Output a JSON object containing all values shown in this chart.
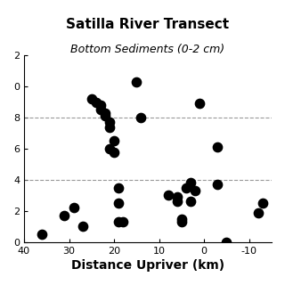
{
  "title": "Satilla River Transect",
  "subtitle": "Bottom Sediments (0-2 cm)",
  "xlabel": "Distance Upriver (km)",
  "xlim": [
    40,
    -15
  ],
  "ylim": [
    0,
    12
  ],
  "xticks": [
    40,
    30,
    20,
    10,
    0,
    -10
  ],
  "yticks": [
    0,
    2,
    4,
    6,
    8,
    10,
    12
  ],
  "ytick_labels": [
    "0",
    "2",
    "4",
    "6",
    "8",
    "0",
    "2"
  ],
  "hlines": [
    4,
    8
  ],
  "scatter_x": [
    36,
    31,
    29,
    27,
    25,
    24,
    23,
    23,
    22,
    22,
    21,
    21,
    21,
    20,
    20,
    19,
    19,
    19,
    18,
    15,
    14,
    8,
    6,
    6,
    5,
    5,
    4,
    3,
    3,
    2,
    1,
    -3,
    -3,
    -5,
    -12,
    -13
  ],
  "scatter_y": [
    0.5,
    1.7,
    2.2,
    1.0,
    9.2,
    9.0,
    8.8,
    8.5,
    8.3,
    8.1,
    7.7,
    7.4,
    6.0,
    5.8,
    6.5,
    3.5,
    2.5,
    1.3,
    1.3,
    10.3,
    8.0,
    3.0,
    2.9,
    2.6,
    1.5,
    1.3,
    3.5,
    3.8,
    2.6,
    3.3,
    8.9,
    6.1,
    3.7,
    0.0,
    1.9,
    2.5
  ],
  "marker_color": "black",
  "marker_size": 55,
  "background_color": "white",
  "title_fontsize": 11,
  "subtitle_fontsize": 9,
  "xlabel_fontsize": 10,
  "tick_fontsize": 8
}
